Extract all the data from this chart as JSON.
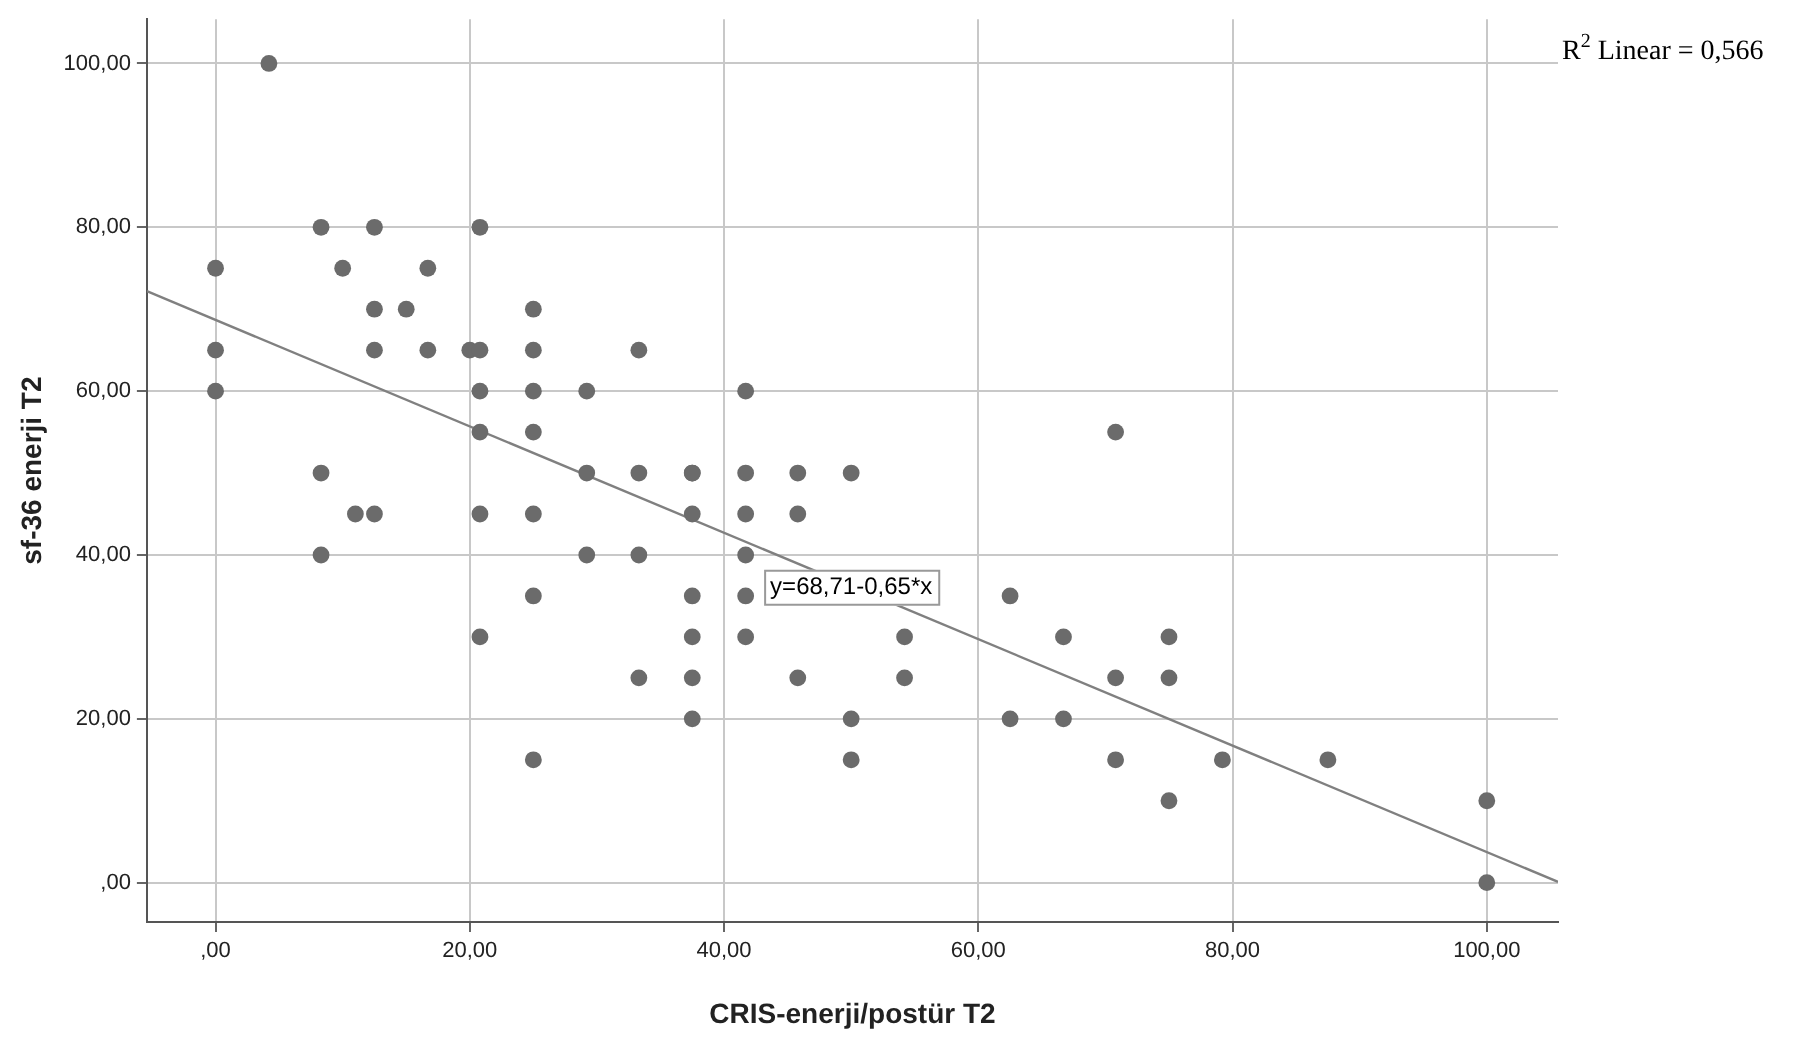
{
  "chart_data": {
    "type": "scatter",
    "xlabel": "CRIS-enerji/postür T2",
    "ylabel": "sf-36 enerji T2",
    "xlim": [
      -5.4,
      105.6
    ],
    "ylim": [
      -4.8,
      105.4
    ],
    "xticks": [
      {
        "value": 0,
        "label": ",00"
      },
      {
        "value": 20,
        "label": "20,00"
      },
      {
        "value": 40,
        "label": "40,00"
      },
      {
        "value": 60,
        "label": "60,00"
      },
      {
        "value": 80,
        "label": "80,00"
      },
      {
        "value": 100,
        "label": "100,00"
      }
    ],
    "yticks": [
      {
        "value": 0,
        "label": ",00"
      },
      {
        "value": 20,
        "label": "20,00"
      },
      {
        "value": 40,
        "label": "40,00"
      },
      {
        "value": 60,
        "label": "60,00"
      },
      {
        "value": 80,
        "label": "80,00"
      },
      {
        "value": 100,
        "label": "100,00"
      }
    ],
    "grid": true,
    "legend": false,
    "marker": "circle",
    "series": [
      {
        "color": "#6b6b6b",
        "x": [
          0,
          0,
          0,
          4.2,
          8.3,
          8.3,
          8.3,
          10,
          11,
          12.5,
          12.5,
          12.5,
          12.5,
          15,
          16.7,
          16.7,
          20,
          20.8,
          20.8,
          20.8,
          20.8,
          20.8,
          20.8,
          25,
          25,
          25,
          25,
          25,
          25,
          25,
          29.2,
          29.2,
          29.2,
          33.3,
          33.3,
          33.3,
          33.3,
          37.5,
          37.5,
          37.5,
          37.5,
          37.5,
          37.5,
          37.5,
          41.7,
          41.7,
          41.7,
          41.7,
          41.7,
          41.7,
          45.8,
          45.8,
          45.8,
          50,
          50,
          50,
          54.2,
          54.2,
          62.5,
          62.5,
          66.7,
          66.7,
          70.8,
          70.8,
          70.8,
          75,
          75,
          75,
          79.2,
          87.5,
          100,
          100
        ],
        "values": [
          75,
          65,
          60,
          100,
          80,
          50,
          40,
          75,
          45,
          80,
          70,
          65,
          45,
          70,
          75,
          65,
          65,
          80,
          65,
          60,
          55,
          45,
          30,
          70,
          65,
          60,
          55,
          45,
          35,
          15,
          60,
          50,
          40,
          65,
          50,
          40,
          25,
          50,
          45,
          35,
          30,
          25,
          20,
          50,
          60,
          50,
          45,
          40,
          35,
          30,
          50,
          45,
          25,
          50,
          20,
          15,
          30,
          25,
          35,
          20,
          30,
          20,
          55,
          25,
          15,
          30,
          25,
          10,
          15,
          15,
          10,
          0
        ]
      },
      {
        "type": "line",
        "color": "#808080",
        "marker": "none",
        "x": [
          -5.4,
          105.6
        ],
        "values": [
          72.2,
          0.1
        ]
      }
    ],
    "annotations": [
      {
        "text": "y=68,71-0,65*x",
        "x": 50,
        "y": 36
      },
      "R$^{2}$ Linear = 0,566"
    ]
  }
}
